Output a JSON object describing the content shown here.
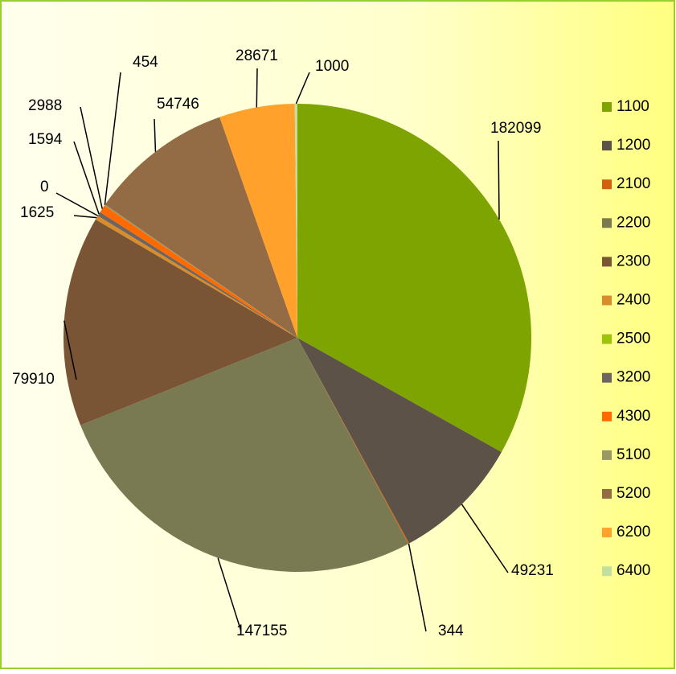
{
  "chart_data": {
    "type": "pie",
    "categories": [
      "1100",
      "1200",
      "2100",
      "2200",
      "2300",
      "2400",
      "2500",
      "3200",
      "4300",
      "5100",
      "5200",
      "6200",
      "6400"
    ],
    "values": [
      182099,
      49231,
      344,
      147155,
      79910,
      1625,
      0,
      1594,
      2988,
      454,
      54746,
      28671,
      1000
    ],
    "colors": [
      "#7da400",
      "#5d5247",
      "#d4600e",
      "#7a7a52",
      "#7a5535",
      "#d98c2a",
      "#9cc40a",
      "#6e6460",
      "#ff6a00",
      "#999966",
      "#936b45",
      "#ffa12a",
      "#c3dfa0"
    ],
    "legend": "right"
  }
}
